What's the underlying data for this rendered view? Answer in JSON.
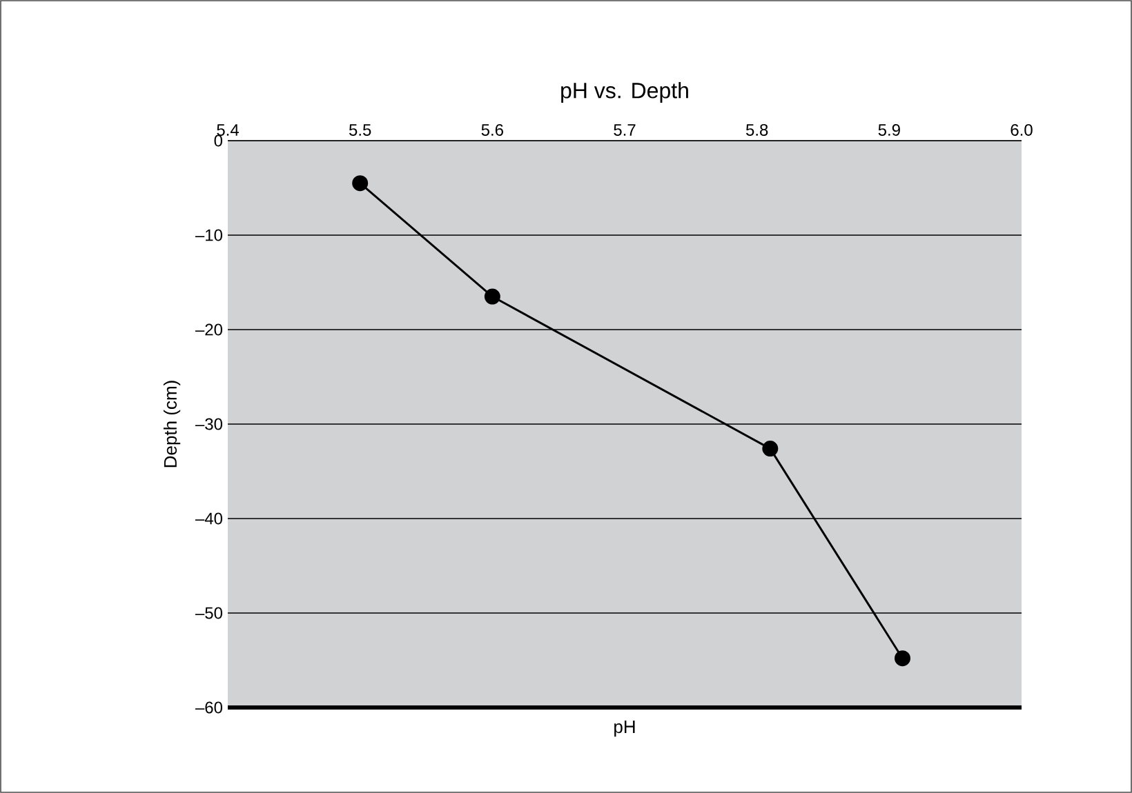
{
  "chart_data": {
    "type": "line",
    "title": "pH vs. Depth",
    "xlabel": "pH",
    "ylabel": "Depth (cm)",
    "x": [
      5.5,
      5.6,
      5.81,
      5.91
    ],
    "values": [
      -4.5,
      -16.5,
      -32.6,
      -54.8
    ],
    "color": "#000000",
    "marker": "circle",
    "line_style": "solid",
    "grid": "y",
    "xlim": [
      5.4,
      6.0
    ],
    "xticks": [
      5.4,
      5.5,
      5.6,
      5.7,
      5.8,
      5.9,
      {
        "value": 6.0,
        "label": "6.0"
      }
    ],
    "ylim": [
      -60,
      0
    ],
    "yticks": [
      0,
      {
        "value": -10,
        "label": "–10"
      },
      {
        "value": -20,
        "label": "–20"
      },
      {
        "value": -30,
        "label": "–30"
      },
      {
        "value": -40,
        "label": "–40"
      },
      {
        "value": -50,
        "label": "–50"
      },
      {
        "value": -60,
        "label": "–60"
      }
    ]
  }
}
